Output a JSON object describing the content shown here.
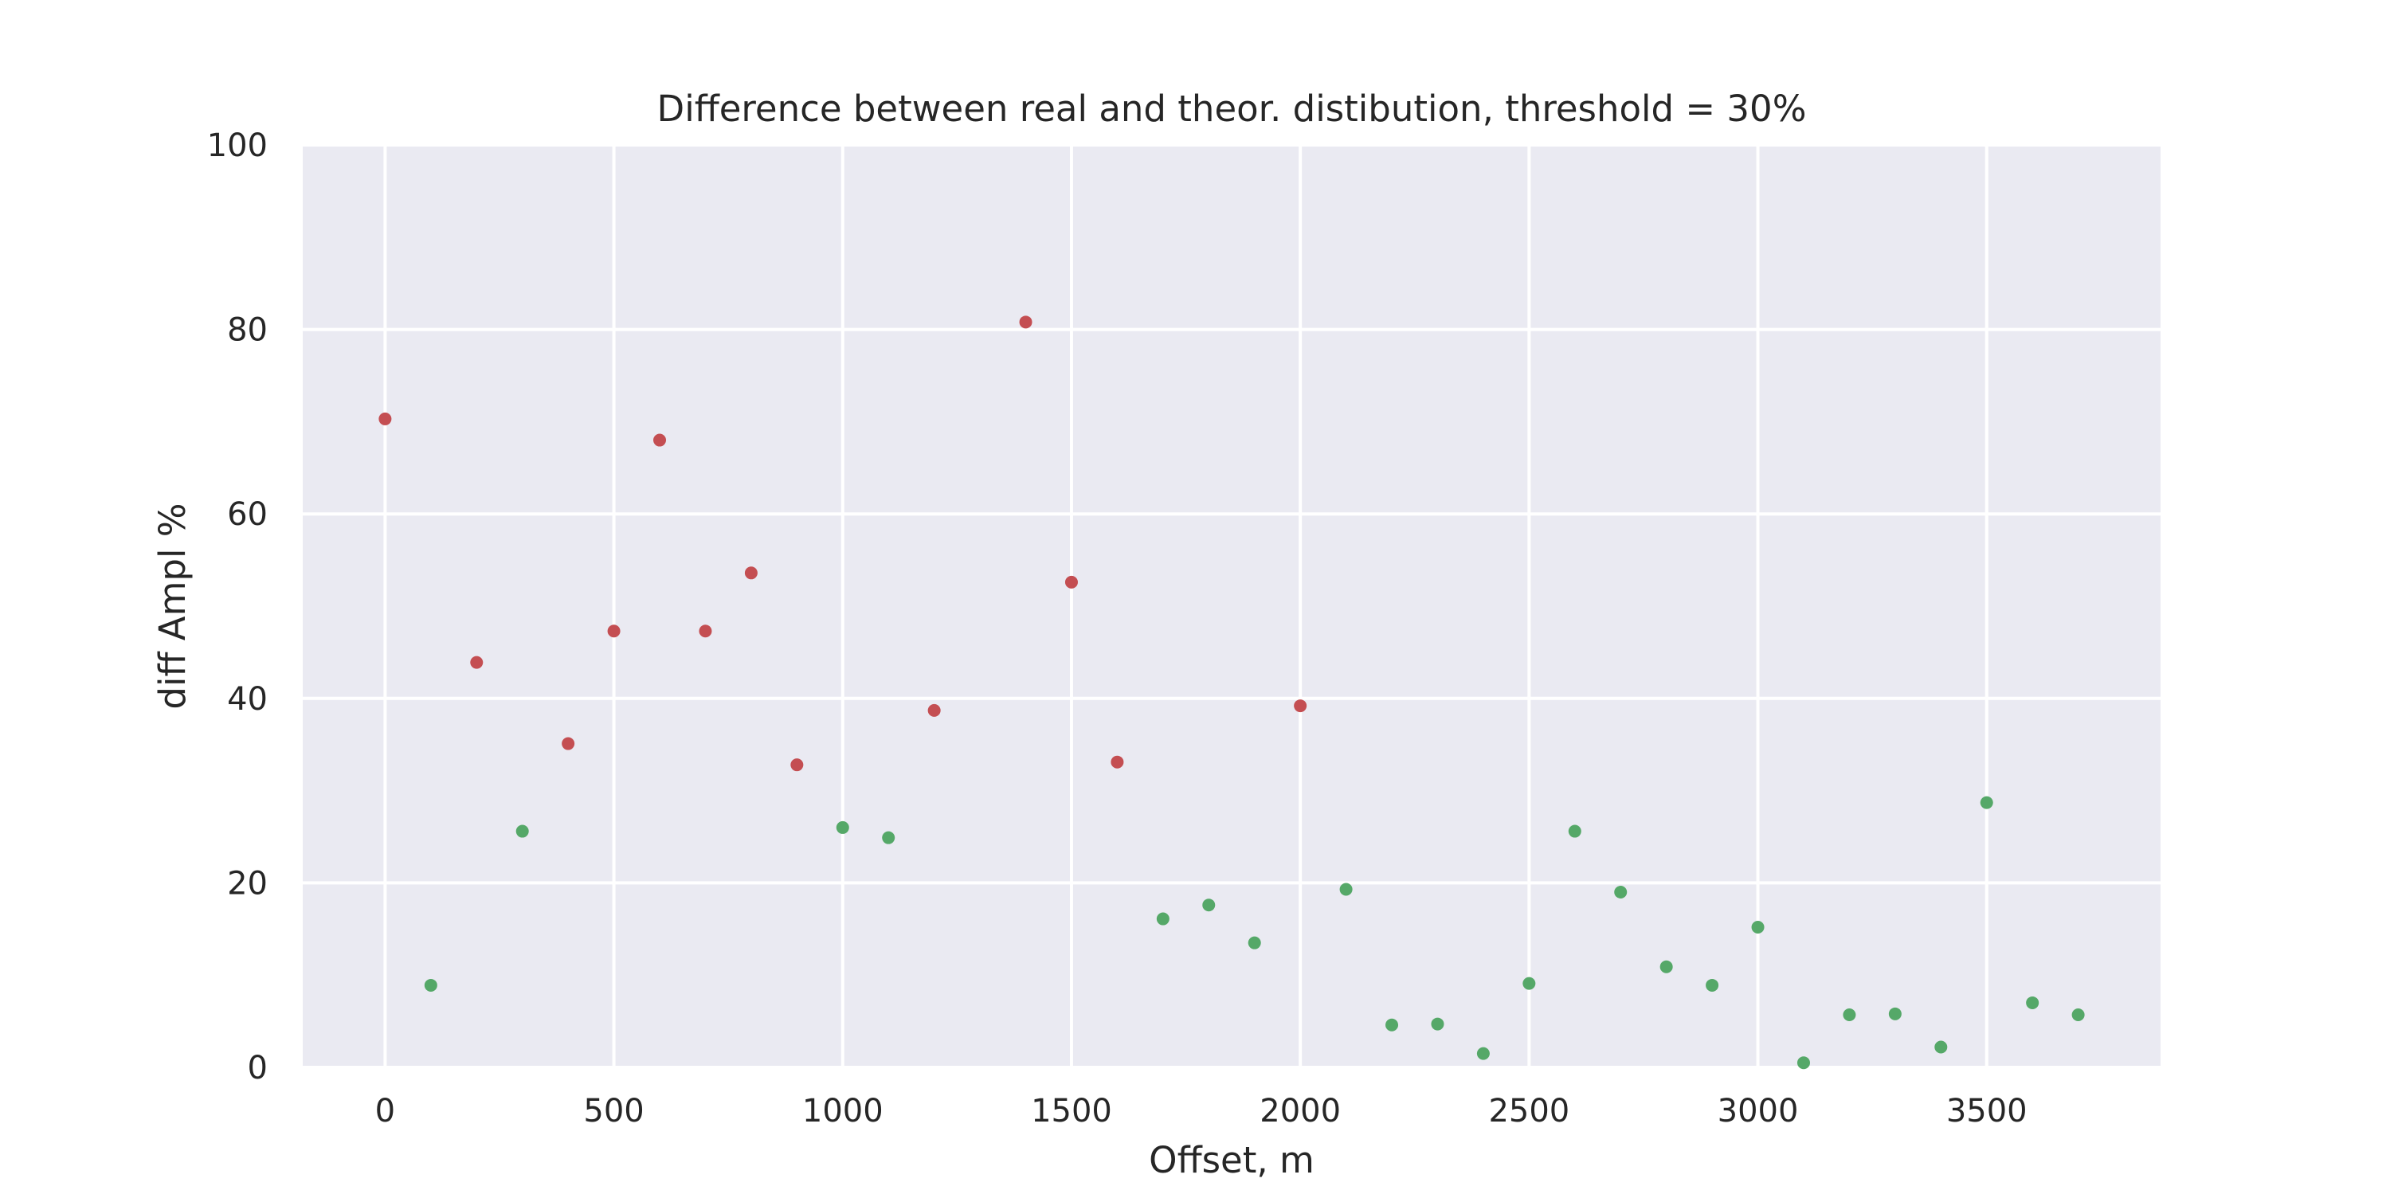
{
  "chart_data": {
    "type": "scatter",
    "title": "Difference between real and theor. distibution, threshold = 30%",
    "xlabel": "Offset, m",
    "ylabel": "diff Ampl %",
    "xlim": [
      -180,
      3880
    ],
    "ylim": [
      0,
      100
    ],
    "x_ticks": [
      0,
      500,
      1000,
      1500,
      2000,
      2500,
      3000,
      3500
    ],
    "y_ticks": [
      0,
      20,
      40,
      60,
      80,
      100
    ],
    "grid": true,
    "background": "#eaeaf2",
    "grid_color": "#ffffff",
    "threshold": 30,
    "colors": {
      "above": "#c44e52",
      "below": "#55a868"
    },
    "points": [
      {
        "x": 0,
        "y": 70.3
      },
      {
        "x": 100,
        "y": 8.9
      },
      {
        "x": 200,
        "y": 43.9
      },
      {
        "x": 300,
        "y": 25.6
      },
      {
        "x": 400,
        "y": 35.1
      },
      {
        "x": 500,
        "y": 47.3
      },
      {
        "x": 600,
        "y": 68.0
      },
      {
        "x": 700,
        "y": 47.3
      },
      {
        "x": 800,
        "y": 53.6
      },
      {
        "x": 900,
        "y": 32.8
      },
      {
        "x": 1000,
        "y": 26.0
      },
      {
        "x": 1100,
        "y": 24.9
      },
      {
        "x": 1200,
        "y": 38.7
      },
      {
        "x": 1400,
        "y": 80.8
      },
      {
        "x": 1500,
        "y": 52.6
      },
      {
        "x": 1600,
        "y": 33.1
      },
      {
        "x": 1700,
        "y": 16.1
      },
      {
        "x": 1800,
        "y": 17.6
      },
      {
        "x": 1900,
        "y": 13.5
      },
      {
        "x": 2000,
        "y": 39.2
      },
      {
        "x": 2100,
        "y": 19.3
      },
      {
        "x": 2200,
        "y": 4.6
      },
      {
        "x": 2300,
        "y": 4.7
      },
      {
        "x": 2400,
        "y": 1.5
      },
      {
        "x": 2500,
        "y": 9.1
      },
      {
        "x": 2600,
        "y": 25.6
      },
      {
        "x": 2700,
        "y": 19.0
      },
      {
        "x": 2800,
        "y": 10.9
      },
      {
        "x": 2900,
        "y": 8.9
      },
      {
        "x": 3000,
        "y": 15.2
      },
      {
        "x": 3100,
        "y": 0.5
      },
      {
        "x": 3200,
        "y": 5.7
      },
      {
        "x": 3300,
        "y": 5.8
      },
      {
        "x": 3400,
        "y": 2.2
      },
      {
        "x": 3500,
        "y": 28.7
      },
      {
        "x": 3600,
        "y": 7.0
      },
      {
        "x": 3700,
        "y": 5.7
      }
    ]
  }
}
